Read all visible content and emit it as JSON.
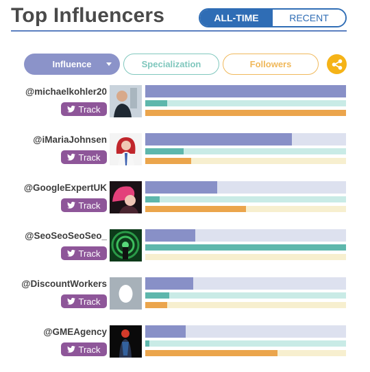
{
  "header": {
    "title": "Top Influencers",
    "tabs": [
      {
        "label": "ALL-TIME",
        "active": true
      },
      {
        "label": "RECENT",
        "active": false
      }
    ]
  },
  "filters": {
    "influence_label": "Influence",
    "specialization_label": "Specialization",
    "followers_label": "Followers",
    "share_icon": "share-icon"
  },
  "colors": {
    "accent_blue": "#2f6db5",
    "influence": "#8890c7",
    "specialization": "#5eb7ac",
    "followers": "#eba54c",
    "track_button": "#8e5699",
    "share": "#f5b317"
  },
  "track_label": "Track",
  "influencers": [
    {
      "handle": "@michaelkohler20",
      "influence": 1.0,
      "specialization": 0.11,
      "followers": 1.0
    },
    {
      "handle": "@iMariaJohnsen",
      "influence": 0.73,
      "specialization": 0.19,
      "followers": 0.23
    },
    {
      "handle": "@GoogleExpertUK",
      "influence": 0.36,
      "specialization": 0.07,
      "followers": 0.5
    },
    {
      "handle": "@SeoSeoSeoSeo_",
      "influence": 0.25,
      "specialization": 1.0,
      "followers": 0.0
    },
    {
      "handle": "@DiscountWorkers",
      "influence": 0.24,
      "specialization": 0.12,
      "followers": 0.11
    },
    {
      "handle": "@GMEAgency",
      "influence": 0.2,
      "specialization": 0.02,
      "followers": 0.66
    }
  ]
}
